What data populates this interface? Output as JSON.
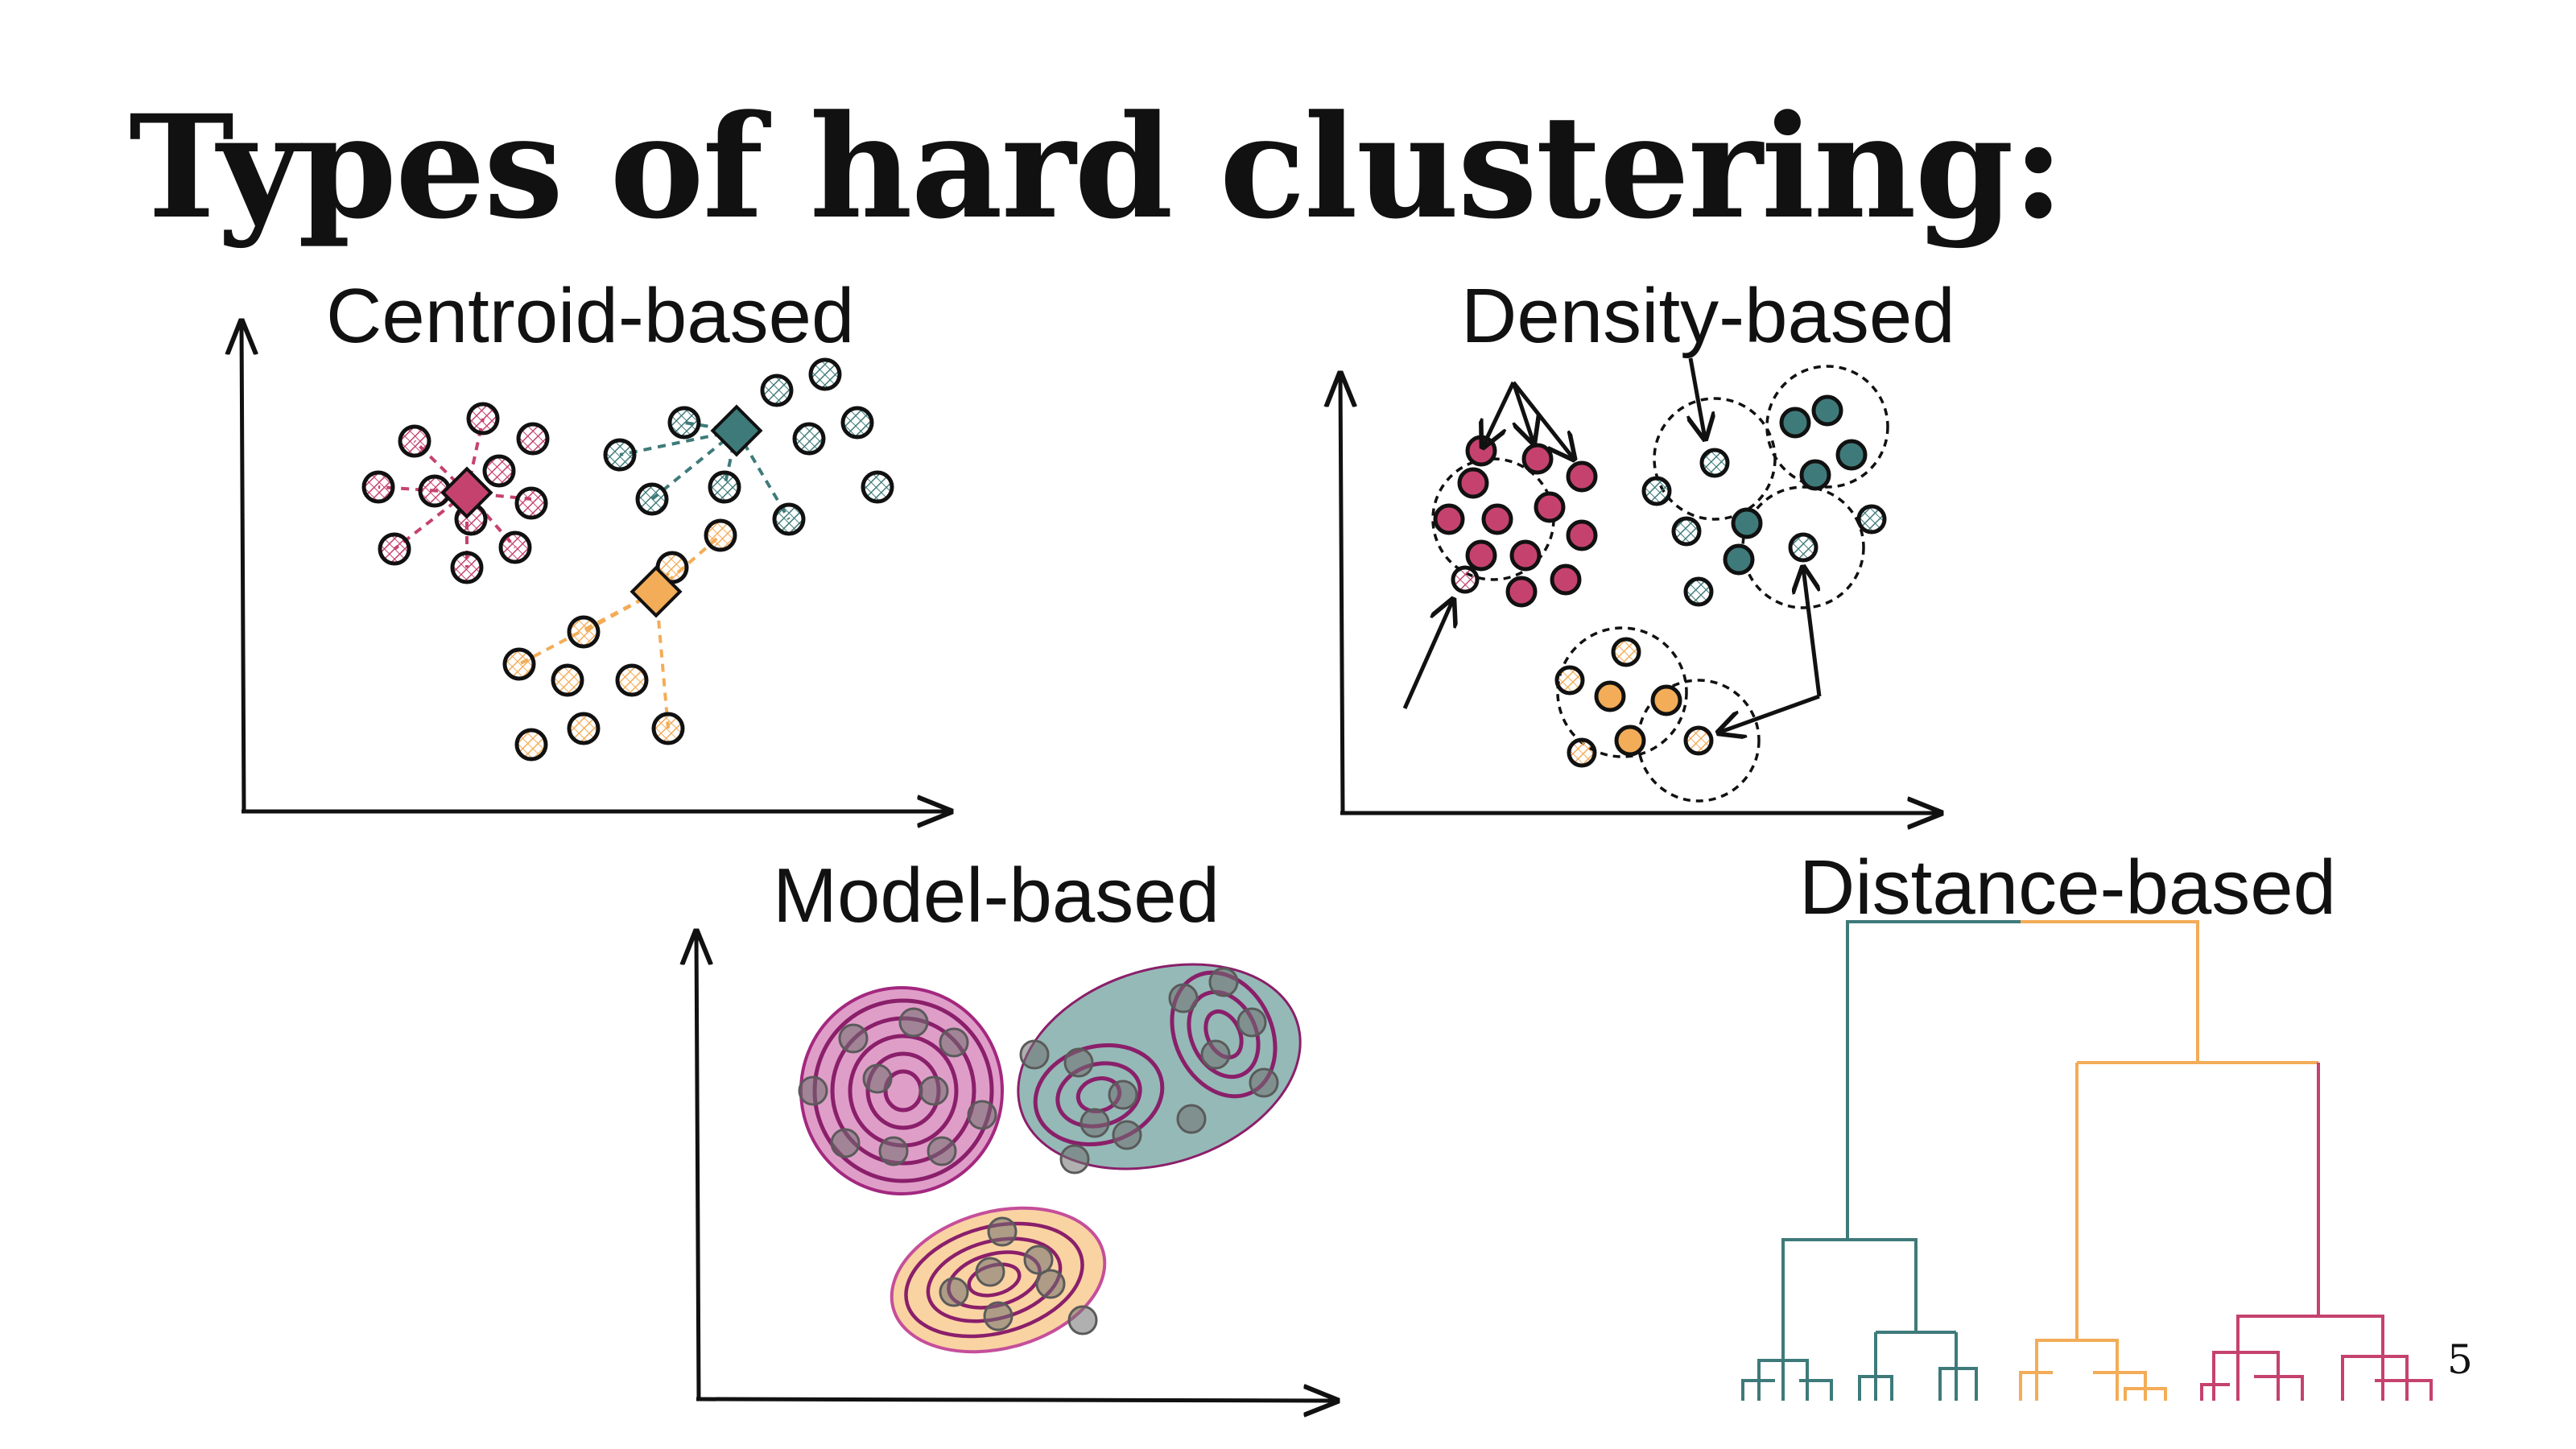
{
  "title": "Types of hard clustering:",
  "panels": {
    "centroid": "Centroid-based",
    "density": "Density-based",
    "model": "Model-based",
    "distance": "Distance-based"
  },
  "page_number": "5",
  "colors": {
    "pink": "#c5426f",
    "teal": "#3f7a7a",
    "orange": "#f3ac57",
    "purple": "#8a1f6a",
    "ink": "#111111"
  }
}
